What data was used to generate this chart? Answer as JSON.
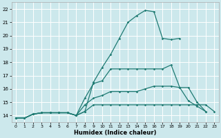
{
  "xlabel": "Humidex (Indice chaleur)",
  "bg_color": "#cce8ec",
  "grid_color": "#ffffff",
  "line_color": "#1e7a72",
  "xlim": [
    -0.5,
    23.5
  ],
  "ylim": [
    13.5,
    22.5
  ],
  "xticks": [
    0,
    1,
    2,
    3,
    4,
    5,
    6,
    7,
    8,
    9,
    10,
    11,
    12,
    13,
    14,
    15,
    16,
    17,
    18,
    19,
    20,
    21,
    22,
    23
  ],
  "yticks": [
    14,
    15,
    16,
    17,
    18,
    19,
    20,
    21,
    22
  ],
  "lines": [
    {
      "x": [
        0,
        1,
        2,
        3,
        4,
        5,
        6,
        7,
        8,
        9,
        10,
        11,
        12,
        13,
        14,
        15,
        16,
        17,
        18,
        19
      ],
      "y": [
        13.8,
        13.8,
        14.1,
        14.2,
        14.2,
        14.2,
        14.2,
        14.0,
        14.3,
        16.5,
        17.6,
        18.6,
        19.8,
        21.0,
        21.5,
        21.9,
        21.8,
        19.8,
        19.7,
        19.8
      ]
    },
    {
      "x": [
        0,
        1,
        2,
        3,
        4,
        5,
        6,
        7,
        8,
        9,
        10,
        11,
        12,
        13,
        14,
        15,
        16,
        17,
        18,
        19,
        20,
        21,
        22,
        23
      ],
      "y": [
        13.8,
        13.8,
        14.1,
        14.2,
        14.2,
        14.2,
        14.2,
        14.0,
        14.3,
        14.8,
        14.8,
        14.8,
        14.8,
        14.8,
        14.8,
        14.8,
        14.8,
        14.8,
        14.8,
        14.8,
        14.8,
        14.8,
        14.8,
        14.3
      ]
    },
    {
      "x": [
        0,
        1,
        2,
        3,
        4,
        5,
        6,
        7,
        8,
        9,
        10,
        11,
        12,
        13,
        14,
        15,
        16,
        17,
        18,
        19,
        20,
        21,
        22
      ],
      "y": [
        13.8,
        13.8,
        14.1,
        14.2,
        14.2,
        14.2,
        14.2,
        14.0,
        14.8,
        15.3,
        15.5,
        15.8,
        15.8,
        15.8,
        15.8,
        16.0,
        16.2,
        16.2,
        16.2,
        16.1,
        16.1,
        15.0,
        14.3
      ]
    },
    {
      "x": [
        0,
        1,
        2,
        3,
        4,
        5,
        6,
        7,
        8,
        9,
        10,
        11,
        12,
        13,
        14,
        15,
        16,
        17,
        18,
        19,
        20,
        21,
        22
      ],
      "y": [
        13.8,
        13.8,
        14.1,
        14.2,
        14.2,
        14.2,
        14.2,
        14.0,
        15.3,
        16.4,
        16.6,
        17.5,
        17.5,
        17.5,
        17.5,
        17.5,
        17.5,
        17.5,
        17.8,
        16.1,
        15.1,
        14.7,
        14.3
      ]
    }
  ]
}
